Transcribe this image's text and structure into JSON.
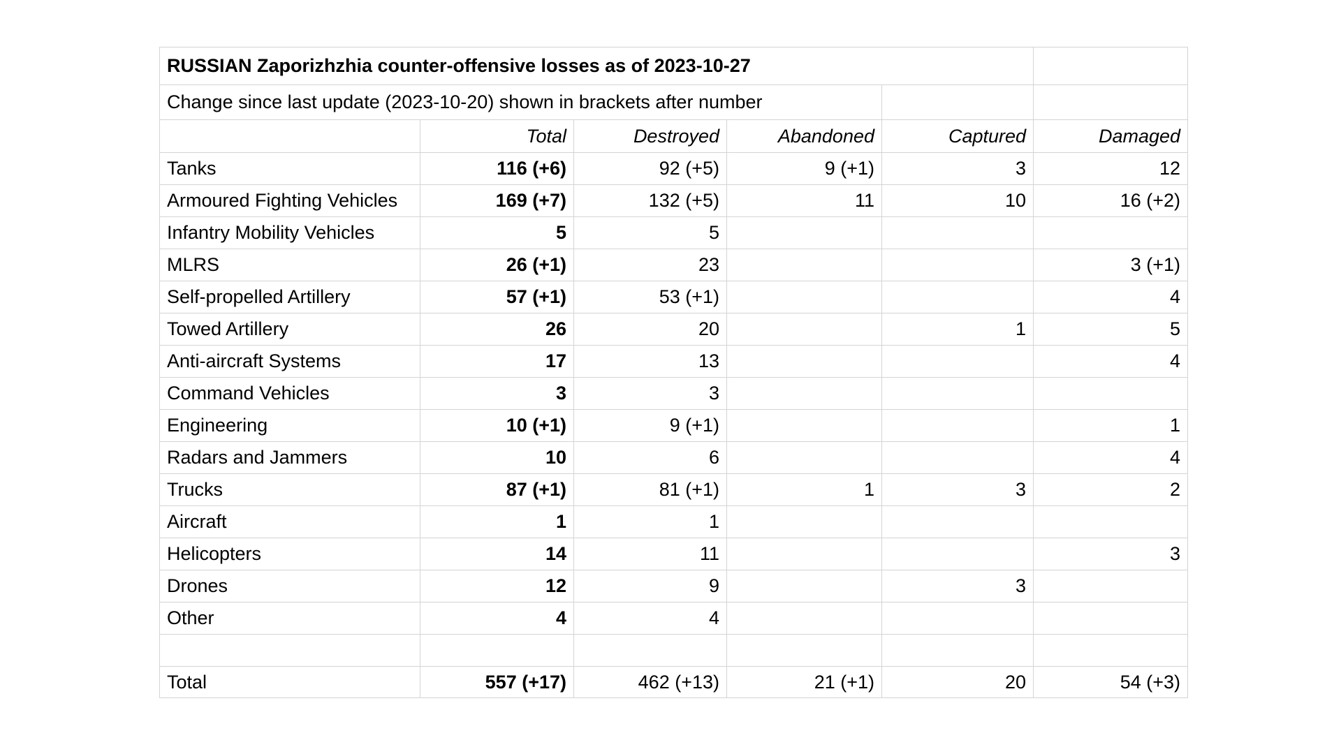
{
  "colors": {
    "background": "#ffffff",
    "grid_line": "#d4d4d4",
    "text": "#000000"
  },
  "chart_data": {
    "type": "table",
    "title": "RUSSIAN Zaporizhzhia counter-offensive losses as of 2023-10-27",
    "subtitle": "Change since last update (2023-10-20) shown in brackets after number",
    "column_headers": [
      "Total",
      "Destroyed",
      "Abandoned",
      "Captured",
      "Damaged"
    ],
    "rows": [
      {
        "label": "Tanks",
        "cells": [
          "116 (+6)",
          "92 (+5)",
          "9 (+1)",
          "3",
          "12"
        ]
      },
      {
        "label": "Armoured Fighting Vehicles",
        "cells": [
          "169 (+7)",
          "132 (+5)",
          "11",
          "10",
          "16 (+2)"
        ]
      },
      {
        "label": "Infantry Mobility Vehicles",
        "cells": [
          "5",
          "5",
          "",
          "",
          ""
        ]
      },
      {
        "label": "MLRS",
        "cells": [
          "26 (+1)",
          "23",
          "",
          "",
          "3 (+1)"
        ]
      },
      {
        "label": "Self-propelled Artillery",
        "cells": [
          "57 (+1)",
          "53 (+1)",
          "",
          "",
          "4"
        ]
      },
      {
        "label": "Towed Artillery",
        "cells": [
          "26",
          "20",
          "",
          "1",
          "5"
        ]
      },
      {
        "label": "Anti-aircraft Systems",
        "cells": [
          "17",
          "13",
          "",
          "",
          "4"
        ]
      },
      {
        "label": "Command Vehicles",
        "cells": [
          "3",
          "3",
          "",
          "",
          ""
        ]
      },
      {
        "label": "Engineering",
        "cells": [
          "10 (+1)",
          "9 (+1)",
          "",
          "",
          "1"
        ]
      },
      {
        "label": "Radars and Jammers",
        "cells": [
          "10",
          "6",
          "",
          "",
          "4"
        ]
      },
      {
        "label": "Trucks",
        "cells": [
          "87 (+1)",
          "81 (+1)",
          "1",
          "3",
          "2"
        ]
      },
      {
        "label": "Aircraft",
        "cells": [
          "1",
          "1",
          "",
          "",
          ""
        ]
      },
      {
        "label": "Helicopters",
        "cells": [
          "14",
          "11",
          "",
          "",
          "3"
        ]
      },
      {
        "label": "Drones",
        "cells": [
          "12",
          "9",
          "",
          "3",
          ""
        ]
      },
      {
        "label": "Other",
        "cells": [
          "4",
          "4",
          "",
          "",
          ""
        ]
      }
    ],
    "total_row": {
      "label": "Total",
      "cells": [
        "557 (+17)",
        "462 (+13)",
        "21 (+1)",
        "20",
        "54 (+3)"
      ]
    },
    "layout_notes": "Total column values bold; column headers italic right-aligned; changes since last update shown in brackets"
  }
}
